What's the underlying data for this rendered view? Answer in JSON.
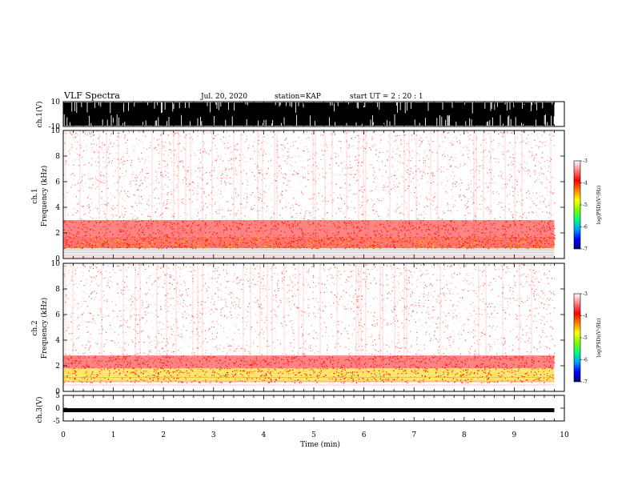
{
  "header": {
    "title": "VLF Spectra",
    "date": "Jul. 20, 2020",
    "station": "station=KAP",
    "start_ut": "start UT =  2 : 20 : 1"
  },
  "chart_data": [
    {
      "id": "ch1_waveform",
      "type": "line",
      "ylabel": "ch.1(V)",
      "ylim": [
        -10,
        10
      ],
      "yticks": [
        "10",
        "-10"
      ],
      "x_range_min": [
        0,
        9.8
      ],
      "description_of_signal": "dense broadband noise, nearly saturating +-10 V"
    },
    {
      "id": "ch1_spectrogram",
      "type": "heatmap",
      "ylabel_line1": "ch.1",
      "ylabel_line2": "Frequency (kHz)",
      "ylim_khz": [
        0,
        10
      ],
      "yticks": [
        "0",
        "2",
        "4",
        "6",
        "8",
        "10"
      ],
      "x_range_min": [
        0,
        9.8
      ],
      "bands": [
        {
          "from_khz": 0.8,
          "to_khz": 1.7,
          "level": "yellow-red"
        },
        {
          "from_khz": 1.7,
          "to_khz": 3.0,
          "level": "red"
        },
        {
          "from_khz": 3.0,
          "to_khz": 10.0,
          "level": "light pink speckle"
        }
      ],
      "horizontal_lines_khz": [
        0.12,
        0.24,
        0.36,
        0.48,
        0.6,
        0.72
      ]
    },
    {
      "id": "ch2_spectrogram",
      "type": "heatmap",
      "ylabel_line1": "ch.2",
      "ylabel_line2": "Frequency (kHz)",
      "ylim_khz": [
        0,
        10
      ],
      "yticks": [
        "0",
        "2",
        "4",
        "6",
        "8",
        "10"
      ],
      "x_range_min": [
        0,
        9.8
      ],
      "bands": [
        {
          "from_khz": 0.7,
          "to_khz": 1.8,
          "level": "yellow"
        },
        {
          "from_khz": 1.8,
          "to_khz": 2.8,
          "level": "red"
        },
        {
          "from_khz": 2.8,
          "to_khz": 10.0,
          "level": "light pink speckle"
        }
      ],
      "horizontal_lines_khz": [
        0.5,
        0.8,
        1.1
      ]
    },
    {
      "id": "ch3_waveform",
      "type": "line",
      "ylabel": "ch.3(V)",
      "ylim": [
        -5,
        5
      ],
      "yticks": [
        "5",
        "0",
        "-5"
      ],
      "level_v": -0.8,
      "x_range_min": [
        0,
        9.8
      ]
    }
  ],
  "x_axis": {
    "label": "Time (min)",
    "range": [
      0,
      10
    ],
    "ticks": [
      "0",
      "1",
      "2",
      "3",
      "4",
      "5",
      "6",
      "7",
      "8",
      "9",
      "10"
    ]
  },
  "colorbar": {
    "label": "log(PSD)(V²/Hz)",
    "range": [
      -7,
      -3
    ],
    "ticks": [
      "-3",
      "-4",
      "-5",
      "-6",
      "-7"
    ],
    "colors": [
      "#000080",
      "#0000ff",
      "#00a0ff",
      "#00ff80",
      "#80ff00",
      "#ffff00",
      "#ff8000",
      "#ff0000",
      "#ff8080",
      "#ffffff"
    ]
  }
}
